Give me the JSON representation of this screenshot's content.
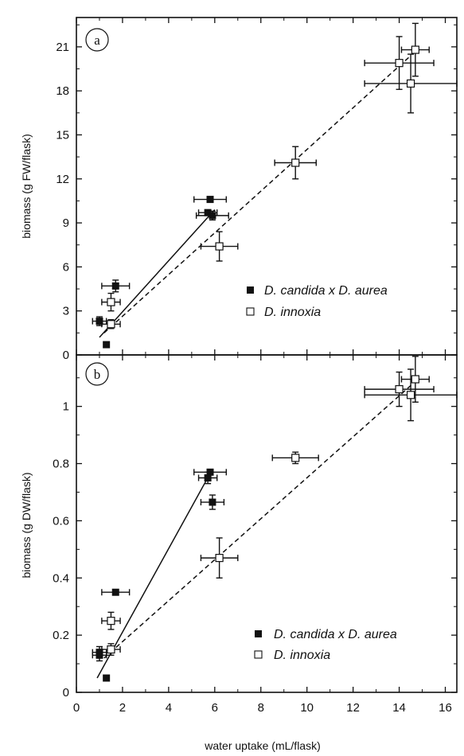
{
  "chart_data": [
    {
      "type": "scatter",
      "panel_label": "a",
      "xlabel": "",
      "ylabel": "biomass (g FW/flask)",
      "xlim": [
        0,
        16.5
      ],
      "ylim": [
        0,
        23
      ],
      "x_ticks": [
        0,
        2,
        4,
        6,
        8,
        10,
        12,
        14,
        16
      ],
      "y_ticks": [
        0,
        3,
        6,
        9,
        12,
        15,
        18,
        21
      ],
      "legend_position": "bottom-right",
      "series": [
        {
          "name": "D. candida x D. aurea",
          "marker": "filled",
          "points": [
            {
              "x": 1.0,
              "y": 2.3,
              "xerr": 0.3,
              "yerr": 0.3
            },
            {
              "x": 1.3,
              "y": 0.7,
              "xerr": 0,
              "yerr": 0
            },
            {
              "x": 1.7,
              "y": 4.7,
              "xerr": 0.6,
              "yerr": 0.4
            },
            {
              "x": 5.8,
              "y": 10.6,
              "xerr": 0.7,
              "yerr": 0
            },
            {
              "x": 5.7,
              "y": 9.7,
              "xerr": 0.4,
              "yerr": 0
            },
            {
              "x": 5.9,
              "y": 9.5,
              "xerr": 0.7,
              "yerr": 0.3
            }
          ],
          "fit_line": {
            "style": "solid",
            "x": [
              1.0,
              6.0
            ],
            "y": [
              1.2,
              9.9
            ]
          }
        },
        {
          "name": "D. innoxia",
          "marker": "open",
          "points": [
            {
              "x": 1.5,
              "y": 3.6,
              "xerr": 0.4,
              "yerr": 0.6
            },
            {
              "x": 1.5,
              "y": 2.1,
              "xerr": 0.4,
              "yerr": 0.3
            },
            {
              "x": 6.2,
              "y": 7.4,
              "xerr": 0.8,
              "yerr": 1.0
            },
            {
              "x": 9.5,
              "y": 13.1,
              "xerr": 0.9,
              "yerr": 1.1
            },
            {
              "x": 14.0,
              "y": 19.9,
              "xerr": 1.5,
              "yerr": 1.8
            },
            {
              "x": 14.7,
              "y": 20.8,
              "xerr": 0.6,
              "yerr": 1.8
            },
            {
              "x": 14.5,
              "y": 18.5,
              "xerr": 2.0,
              "yerr": 2.0
            }
          ],
          "fit_line": {
            "style": "dashed",
            "x": [
              1.2,
              14.5
            ],
            "y": [
              1.5,
              20.4
            ]
          }
        }
      ]
    },
    {
      "type": "scatter",
      "panel_label": "b",
      "xlabel": "water uptake (mL/flask)",
      "ylabel": "biomass (g DW/flask)",
      "xlim": [
        0,
        16.5
      ],
      "ylim": [
        0,
        1.18
      ],
      "x_ticks": [
        0,
        2,
        4,
        6,
        8,
        10,
        12,
        14,
        16
      ],
      "y_ticks": [
        0,
        0.2,
        0.4,
        0.6,
        0.8,
        1
      ],
      "legend_position": "bottom-right",
      "series": [
        {
          "name": "D. candida x D. aurea",
          "marker": "filled",
          "points": [
            {
              "x": 1.0,
              "y": 0.13,
              "xerr": 0.3,
              "yerr": 0.02
            },
            {
              "x": 1.0,
              "y": 0.14,
              "xerr": 0.3,
              "yerr": 0.02
            },
            {
              "x": 1.3,
              "y": 0.05,
              "xerr": 0,
              "yerr": 0
            },
            {
              "x": 1.7,
              "y": 0.35,
              "xerr": 0.6,
              "yerr": 0
            },
            {
              "x": 5.8,
              "y": 0.77,
              "xerr": 0.7,
              "yerr": 0
            },
            {
              "x": 5.7,
              "y": 0.75,
              "xerr": 0.4,
              "yerr": 0.02
            },
            {
              "x": 5.9,
              "y": 0.665,
              "xerr": 0.5,
              "yerr": 0.025
            }
          ],
          "fit_line": {
            "style": "solid",
            "x": [
              0.9,
              5.9
            ],
            "y": [
              0.05,
              0.78
            ]
          }
        },
        {
          "name": "D. innoxia",
          "marker": "open",
          "points": [
            {
              "x": 1.5,
              "y": 0.25,
              "xerr": 0.4,
              "yerr": 0.03
            },
            {
              "x": 1.5,
              "y": 0.15,
              "xerr": 0.4,
              "yerr": 0.02
            },
            {
              "x": 6.2,
              "y": 0.47,
              "xerr": 0.8,
              "yerr": 0.07
            },
            {
              "x": 9.5,
              "y": 0.82,
              "xerr": 1.0,
              "yerr": 0.02
            },
            {
              "x": 14.0,
              "y": 1.06,
              "xerr": 1.5,
              "yerr": 0.06
            },
            {
              "x": 14.7,
              "y": 1.095,
              "xerr": 0.6,
              "yerr": 0.08
            },
            {
              "x": 14.5,
              "y": 1.04,
              "xerr": 2.0,
              "yerr": 0.09
            }
          ],
          "fit_line": {
            "style": "dashed",
            "x": [
              1.2,
              14.6
            ],
            "y": [
              0.12,
              1.08
            ]
          }
        }
      ]
    }
  ]
}
